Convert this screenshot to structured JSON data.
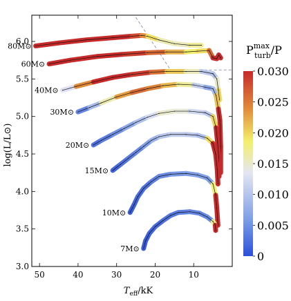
{
  "chart_data": {
    "type": "scatter",
    "xlabel_main": "T",
    "xlabel_sub": "eff",
    "xlabel_unit": "/kK",
    "ylabel": "log(L/L⊙)",
    "xlim": [
      52,
      0
    ],
    "ylim": [
      3.0,
      6.35
    ],
    "x_ticks": [
      50,
      40,
      30,
      20,
      10
    ],
    "y_ticks": [
      "3.0",
      "3.5",
      "4.0",
      "4.5",
      "5.0",
      "5.5",
      "6.0"
    ],
    "colorbar": {
      "title_main": "P",
      "title_sup": "max",
      "title_sub": "turb",
      "title_tail": "/P",
      "min": 0,
      "max": 0.03,
      "ticks": [
        "0",
        "0.005",
        "0.010",
        "0.015",
        "0.020",
        "0.025",
        "0.030"
      ],
      "colors": [
        "#2b50d8",
        "#7f9fe6",
        "#e4e6f2",
        "#f3ef6c",
        "#e08a3a",
        "#c62a2a"
      ]
    },
    "series": [
      {
        "name": "80M⊙",
        "track": [
          [
            51,
            5.94
          ],
          [
            45,
            5.98
          ],
          [
            38,
            6.02
          ],
          [
            31,
            6.05
          ],
          [
            26,
            6.07
          ],
          [
            23.5,
            6.08
          ],
          [
            22,
            6.07
          ],
          [
            19,
            6.02
          ],
          [
            15,
            5.97
          ],
          [
            11,
            5.95
          ],
          [
            8,
            5.95
          ]
        ],
        "pturb": [
          0.03,
          0.03,
          0.03,
          0.03,
          0.03,
          0.026,
          0.022,
          0.017,
          0.015,
          0.016,
          0.018
        ]
      },
      {
        "name": "60M⊙",
        "track": [
          [
            47.5,
            5.7
          ],
          [
            42,
            5.75
          ],
          [
            35,
            5.8
          ],
          [
            28,
            5.83
          ],
          [
            22,
            5.85
          ],
          [
            17,
            5.86
          ],
          [
            12,
            5.86
          ],
          [
            9,
            5.87
          ],
          [
            6,
            5.88
          ],
          [
            5,
            5.78
          ],
          [
            4,
            5.77
          ],
          [
            3.5,
            5.82
          ],
          [
            3,
            5.78
          ]
        ],
        "pturb": [
          0.03,
          0.03,
          0.03,
          0.03,
          0.028,
          0.024,
          0.02,
          0.017,
          0.022,
          0.03,
          0.03,
          0.03,
          0.03
        ]
      },
      {
        "name": "40M⊙",
        "track": [
          [
            44,
            5.35
          ],
          [
            40.5,
            5.4
          ],
          [
            36,
            5.46
          ],
          [
            31,
            5.52
          ],
          [
            26,
            5.56
          ],
          [
            21,
            5.59
          ],
          [
            17,
            5.6
          ],
          [
            12,
            5.6
          ],
          [
            8,
            5.6
          ],
          [
            5,
            5.57
          ],
          [
            4,
            5.5
          ],
          [
            3.6,
            5.35
          ],
          [
            3.3,
            5.22
          ]
        ],
        "pturb": [
          0.008,
          0.018,
          0.03,
          0.03,
          0.03,
          0.028,
          0.023,
          0.018,
          0.013,
          0.008,
          0.012,
          0.018,
          0.022
        ]
      },
      {
        "name": "30M⊙",
        "track": [
          [
            40,
            5.06
          ],
          [
            37,
            5.12
          ],
          [
            34,
            5.18
          ],
          [
            30,
            5.26
          ],
          [
            26,
            5.32
          ],
          [
            22,
            5.37
          ],
          [
            18,
            5.41
          ],
          [
            14,
            5.43
          ],
          [
            10,
            5.42
          ],
          [
            7,
            5.39
          ],
          [
            5,
            5.37
          ],
          [
            4.2,
            5.28
          ],
          [
            3.6,
            5.1
          ],
          [
            3.2,
            4.95
          ],
          [
            3.0,
            4.6
          ],
          [
            3.0,
            4.25
          ]
        ],
        "pturb": [
          0.002,
          0.006,
          0.012,
          0.02,
          0.026,
          0.026,
          0.023,
          0.02,
          0.014,
          0.008,
          0.006,
          0.012,
          0.03,
          0.03,
          0.03,
          0.03
        ]
      },
      {
        "name": "20M⊙",
        "track": [
          [
            36,
            4.62
          ],
          [
            34,
            4.68
          ],
          [
            31,
            4.76
          ],
          [
            28,
            4.84
          ],
          [
            25,
            4.92
          ],
          [
            22,
            4.99
          ],
          [
            19,
            5.04
          ],
          [
            15,
            5.07
          ],
          [
            11,
            5.07
          ],
          [
            7,
            5.05
          ],
          [
            5,
            5.0
          ],
          [
            4.2,
            4.85
          ],
          [
            3.8,
            4.65
          ],
          [
            3.5,
            4.45
          ],
          [
            3.4,
            4.2
          ]
        ],
        "pturb": [
          0.002,
          0.003,
          0.004,
          0.006,
          0.008,
          0.011,
          0.014,
          0.016,
          0.013,
          0.011,
          0.01,
          0.03,
          0.03,
          0.03,
          0.03
        ]
      },
      {
        "name": "15M⊙",
        "track": [
          [
            31,
            4.28
          ],
          [
            29,
            4.36
          ],
          [
            27,
            4.44
          ],
          [
            25,
            4.52
          ],
          [
            23,
            4.6
          ],
          [
            21,
            4.68
          ],
          [
            19,
            4.73
          ],
          [
            16,
            4.76
          ],
          [
            12,
            4.76
          ],
          [
            9,
            4.75
          ],
          [
            6.5,
            4.71
          ],
          [
            5,
            4.64
          ],
          [
            4.3,
            4.5
          ],
          [
            3.9,
            4.3
          ],
          [
            3.7,
            4.1
          ]
        ],
        "pturb": [
          0.001,
          0.002,
          0.003,
          0.004,
          0.005,
          0.007,
          0.009,
          0.011,
          0.011,
          0.01,
          0.009,
          0.03,
          0.03,
          0.03,
          0.03
        ]
      },
      {
        "name": "10M⊙",
        "track": [
          [
            26.5,
            3.72
          ],
          [
            25.5,
            3.82
          ],
          [
            24.5,
            3.93
          ],
          [
            23,
            4.04
          ],
          [
            21,
            4.13
          ],
          [
            19,
            4.2
          ],
          [
            16,
            4.23
          ],
          [
            12,
            4.24
          ],
          [
            9,
            4.22
          ],
          [
            6.5,
            4.18
          ],
          [
            5,
            4.1
          ],
          [
            4.3,
            3.95
          ],
          [
            4.0,
            3.78
          ],
          [
            3.8,
            3.62
          ],
          [
            3.7,
            3.55
          ]
        ],
        "pturb": [
          0.001,
          0.001,
          0.002,
          0.002,
          0.003,
          0.004,
          0.005,
          0.006,
          0.006,
          0.006,
          0.006,
          0.03,
          0.03,
          0.03,
          0.03
        ]
      },
      {
        "name": "7M⊙",
        "track": [
          [
            23,
            3.24
          ],
          [
            22.5,
            3.34
          ],
          [
            21.5,
            3.44
          ],
          [
            20,
            3.53
          ],
          [
            18,
            3.61
          ],
          [
            16,
            3.68
          ],
          [
            14,
            3.72
          ],
          [
            11,
            3.73
          ],
          [
            8.5,
            3.71
          ],
          [
            6.5,
            3.66
          ],
          [
            5,
            3.6
          ],
          [
            4.4,
            3.55
          ],
          [
            4.3,
            3.48
          ]
        ],
        "pturb": [
          0.001,
          0.001,
          0.001,
          0.002,
          0.002,
          0.003,
          0.003,
          0.004,
          0.004,
          0.004,
          0.005,
          0.03,
          0.03
        ]
      }
    ],
    "reference_lines": [
      {
        "style": "dashed",
        "points": [
          [
            25,
            6.32
          ],
          [
            16,
            5.62
          ],
          [
            0,
            5.62
          ]
        ]
      }
    ]
  }
}
